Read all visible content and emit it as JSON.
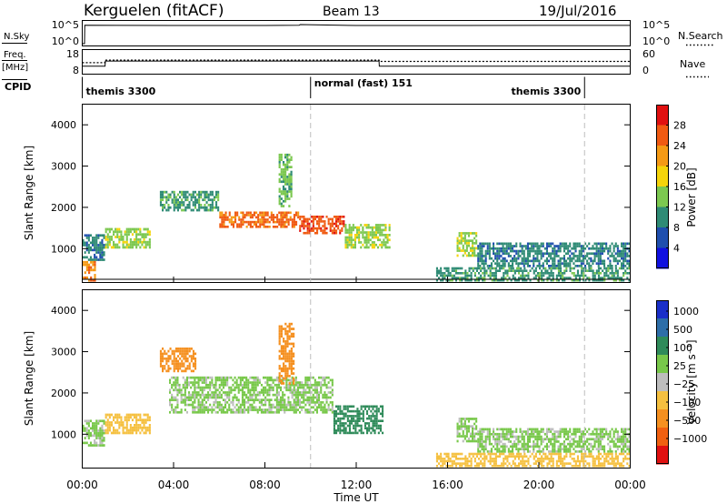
{
  "header": {
    "site": "Kerguelen (fitACF)",
    "beam": "Beam 13",
    "date": "19/Jul/2016"
  },
  "left_labels": {
    "nsky": "N.Sky",
    "freq_line1": "Freq.",
    "freq_line2": "[MHz]",
    "cpid": "CPID"
  },
  "right_labels": {
    "nsearch": "N.Search",
    "nave": "Nave"
  },
  "noise_axis": {
    "left_ticks": [
      "10^5",
      "10^0"
    ],
    "right_ticks": [
      "10^5",
      "10^0"
    ]
  },
  "freq_axis": {
    "left_ticks": [
      "18",
      "8"
    ],
    "right_ticks": [
      "60",
      "0"
    ]
  },
  "programs": [
    {
      "name": "themis 3300",
      "start_h": 0,
      "end_h": 10.0
    },
    {
      "name": "normal (fast) 151",
      "start_h": 10.0,
      "end_h": 22.0
    },
    {
      "name": "themis 3300",
      "start_h": 22.0,
      "end_h": 24.0
    }
  ],
  "time_axis": {
    "label": "Time UT",
    "ticks": [
      "00:00",
      "04:00",
      "08:00",
      "12:00",
      "16:00",
      "20:00",
      "00:00"
    ]
  },
  "range_axis": {
    "label": "Slant Range [km]",
    "ticks": [
      "1000",
      "2000",
      "3000",
      "4000"
    ]
  },
  "power_scale": {
    "label": "Power [dB]",
    "ticks": [
      "4",
      "8",
      "12",
      "16",
      "20",
      "24",
      "28"
    ],
    "colors": [
      "#1010e0",
      "#1f4fae",
      "#2f8b75",
      "#7cc850",
      "#f5d40a",
      "#f59a15",
      "#f05a12",
      "#e01010"
    ]
  },
  "velocity_scale": {
    "label": "Velocity [m s⁻¹]",
    "ticks": [
      "1000",
      "500",
      "100",
      "25",
      "−25",
      "−100",
      "−500",
      "−1000"
    ],
    "colors": [
      "#1a2fc8",
      "#2e6ea8",
      "#2f8b5a",
      "#78c84a",
      "#bdbdbd",
      "#f5c040",
      "#f59020",
      "#f06010",
      "#e01010"
    ]
  },
  "chart_data": [
    {
      "type": "line",
      "title": "Kerguelen (fitACF) Beam 13 19/Jul/2016",
      "xlabel": "Time UT",
      "ylabel": "N.Sky",
      "x": [
        0,
        0.1,
        0.11,
        4,
        8,
        9.5,
        9.55,
        12,
        16,
        20,
        24
      ],
      "series": [
        {
          "name": "N.Sky",
          "values": [
            1,
            1,
            40000,
            35000,
            36000,
            38000,
            60000,
            36000,
            36000,
            37000,
            37000
          ]
        }
      ],
      "ylim": [
        1,
        100000
      ],
      "yscale": "log"
    },
    {
      "type": "line",
      "xlabel": "Time UT",
      "ylabel": "Freq. [MHz]",
      "x": [
        0,
        1.0,
        1.01,
        13.0,
        13.01,
        24
      ],
      "series": [
        {
          "name": "Freq.",
          "values": [
            10.5,
            10.5,
            13.2,
            13.2,
            10.5,
            10.5
          ]
        },
        {
          "name": "Nave",
          "values": [
            26,
            26,
            34,
            34,
            30,
            30
          ]
        }
      ],
      "ylim": [
        8,
        18
      ]
    },
    {
      "type": "heatmap",
      "title": "Power [dB]",
      "xlabel": "Time UT",
      "ylabel": "Slant Range [km]",
      "xlim": [
        0,
        24
      ],
      "ylim": [
        180,
        4500
      ],
      "zlim": [
        0,
        30
      ],
      "regions": [
        {
          "t0": 0.0,
          "t1": 1.0,
          "r0": 700,
          "r1": 1350,
          "v": 8
        },
        {
          "t0": 1.0,
          "t1": 3.0,
          "r0": 1000,
          "r1": 1500,
          "v": 14
        },
        {
          "t0": 0.0,
          "t1": 0.6,
          "r0": 200,
          "r1": 700,
          "v": 22
        },
        {
          "t0": 3.4,
          "t1": 6.0,
          "r0": 1900,
          "r1": 2400,
          "v": 10
        },
        {
          "t0": 6.0,
          "t1": 9.5,
          "r0": 1500,
          "r1": 1900,
          "v": 24
        },
        {
          "t0": 9.5,
          "t1": 11.5,
          "r0": 1350,
          "r1": 1800,
          "v": 26
        },
        {
          "t0": 11.5,
          "t1": 13.5,
          "r0": 1000,
          "r1": 1600,
          "v": 14
        },
        {
          "t0": 8.6,
          "t1": 9.2,
          "r0": 2000,
          "r1": 3300,
          "v": 12
        },
        {
          "t0": 16.4,
          "t1": 17.3,
          "r0": 800,
          "r1": 1400,
          "v": 14
        },
        {
          "t0": 17.3,
          "t1": 24.0,
          "r0": 550,
          "r1": 1150,
          "v": 8
        },
        {
          "t0": 15.5,
          "t1": 24.0,
          "r0": 200,
          "r1": 550,
          "v": 10
        }
      ]
    },
    {
      "type": "heatmap",
      "title": "Velocity [m s⁻¹]",
      "xlabel": "Time UT",
      "ylabel": "Slant Range [km]",
      "xlim": [
        0,
        24
      ],
      "ylim": [
        180,
        4500
      ],
      "zlim": [
        -1000,
        1000
      ],
      "regions": [
        {
          "t0": 0.0,
          "t1": 1.0,
          "r0": 700,
          "r1": 1350,
          "v": 0
        },
        {
          "t0": 1.0,
          "t1": 3.0,
          "r0": 1000,
          "r1": 1500,
          "v": -60
        },
        {
          "t0": 3.4,
          "t1": 5.0,
          "r0": 2500,
          "r1": 3100,
          "v": -300
        },
        {
          "t0": 3.8,
          "t1": 11.0,
          "r0": 1500,
          "r1": 2400,
          "v": 0
        },
        {
          "t0": 8.6,
          "t1": 9.3,
          "r0": 2200,
          "r1": 3700,
          "v": -400
        },
        {
          "t0": 11.0,
          "t1": 13.2,
          "r0": 1000,
          "r1": 1700,
          "v": 60
        },
        {
          "t0": 16.4,
          "t1": 17.3,
          "r0": 800,
          "r1": 1400,
          "v": 0
        },
        {
          "t0": 17.3,
          "t1": 24.0,
          "r0": 550,
          "r1": 1150,
          "v": 0
        },
        {
          "t0": 15.5,
          "t1": 24.0,
          "r0": 200,
          "r1": 550,
          "v": -60
        }
      ]
    }
  ]
}
